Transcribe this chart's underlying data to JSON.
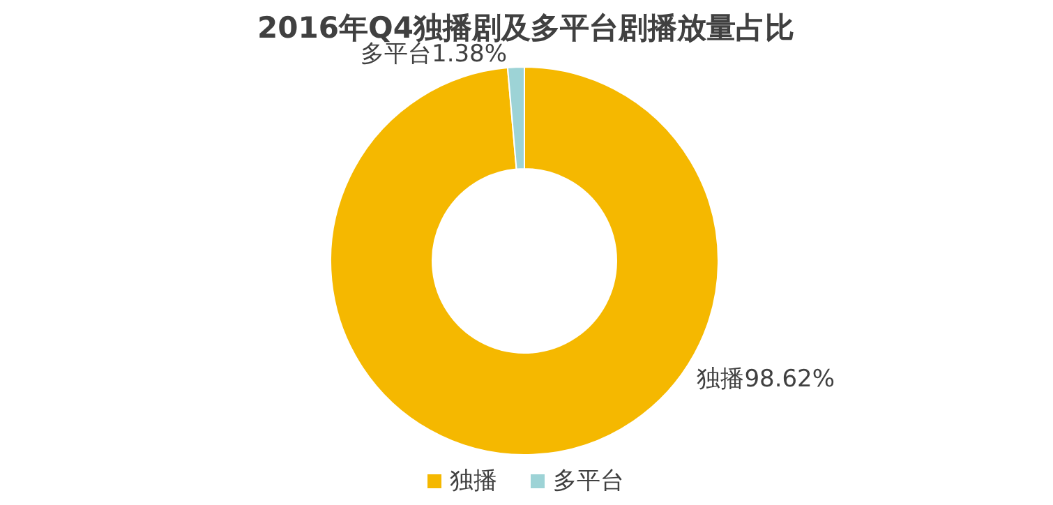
{
  "chart_data": {
    "type": "donut",
    "title": "2016年Q4独播剧及多平台剧播放量占比",
    "categories": [
      "独播",
      "多平台"
    ],
    "values": [
      98.62,
      1.38
    ],
    "colors": [
      "#f5b800",
      "#9dd3d6"
    ],
    "value_labels": [
      "独播98.62%",
      "多平台1.38%"
    ],
    "legend": "bottom"
  }
}
